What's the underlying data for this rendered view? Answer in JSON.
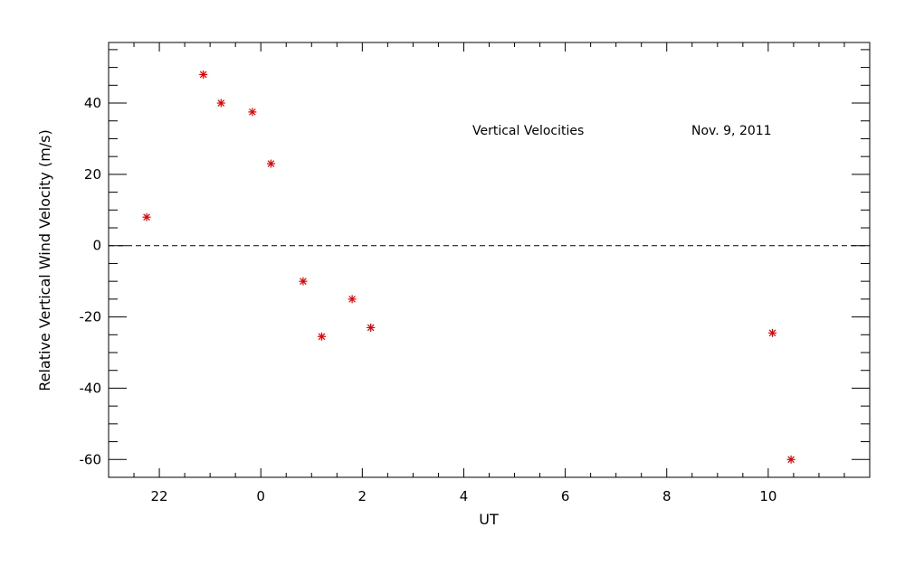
{
  "chart_data": {
    "type": "scatter",
    "xlabel": "UT",
    "ylabel": "Relative Vertical Wind Velocity (m/s)",
    "annotations": [
      "Vertical Velocities",
      "Nov. 9, 2011"
    ],
    "x_axis_note": "UT hours; 22 precedes midnight (0), continuing to 10",
    "xlim": [
      21,
      12
    ],
    "ylim": [
      -65,
      57
    ],
    "x_ticks": [
      {
        "value": 22,
        "label": "22"
      },
      {
        "value": 0,
        "label": "0"
      },
      {
        "value": 2,
        "label": "2"
      },
      {
        "value": 4,
        "label": "4"
      },
      {
        "value": 6,
        "label": "6"
      },
      {
        "value": 8,
        "label": "8"
      },
      {
        "value": 10,
        "label": "10"
      }
    ],
    "y_ticks": [
      {
        "value": 40,
        "label": "40"
      },
      {
        "value": 20,
        "label": "20"
      },
      {
        "value": 0,
        "label": "0"
      },
      {
        "value": -20,
        "label": "-20"
      },
      {
        "value": -40,
        "label": "-40"
      },
      {
        "value": -60,
        "label": "-60"
      }
    ],
    "zero_line": {
      "y": 0,
      "style": "dashed"
    },
    "marker": {
      "symbol": "asterisk",
      "color": "#e00000"
    },
    "points": [
      {
        "x": "21:45",
        "y": 8
      },
      {
        "x": "22:52",
        "y": 48
      },
      {
        "x": "23:13",
        "y": 40
      },
      {
        "x": "23:50",
        "y": 37.5
      },
      {
        "x": "0:12",
        "y": 23
      },
      {
        "x": "0:50",
        "y": -10
      },
      {
        "x": "1:12",
        "y": -25.5
      },
      {
        "x": "1:48",
        "y": -15
      },
      {
        "x": "2:10",
        "y": -23
      },
      {
        "x": "10:05",
        "y": -24.5
      },
      {
        "x": "10:27",
        "y": -60
      }
    ]
  }
}
